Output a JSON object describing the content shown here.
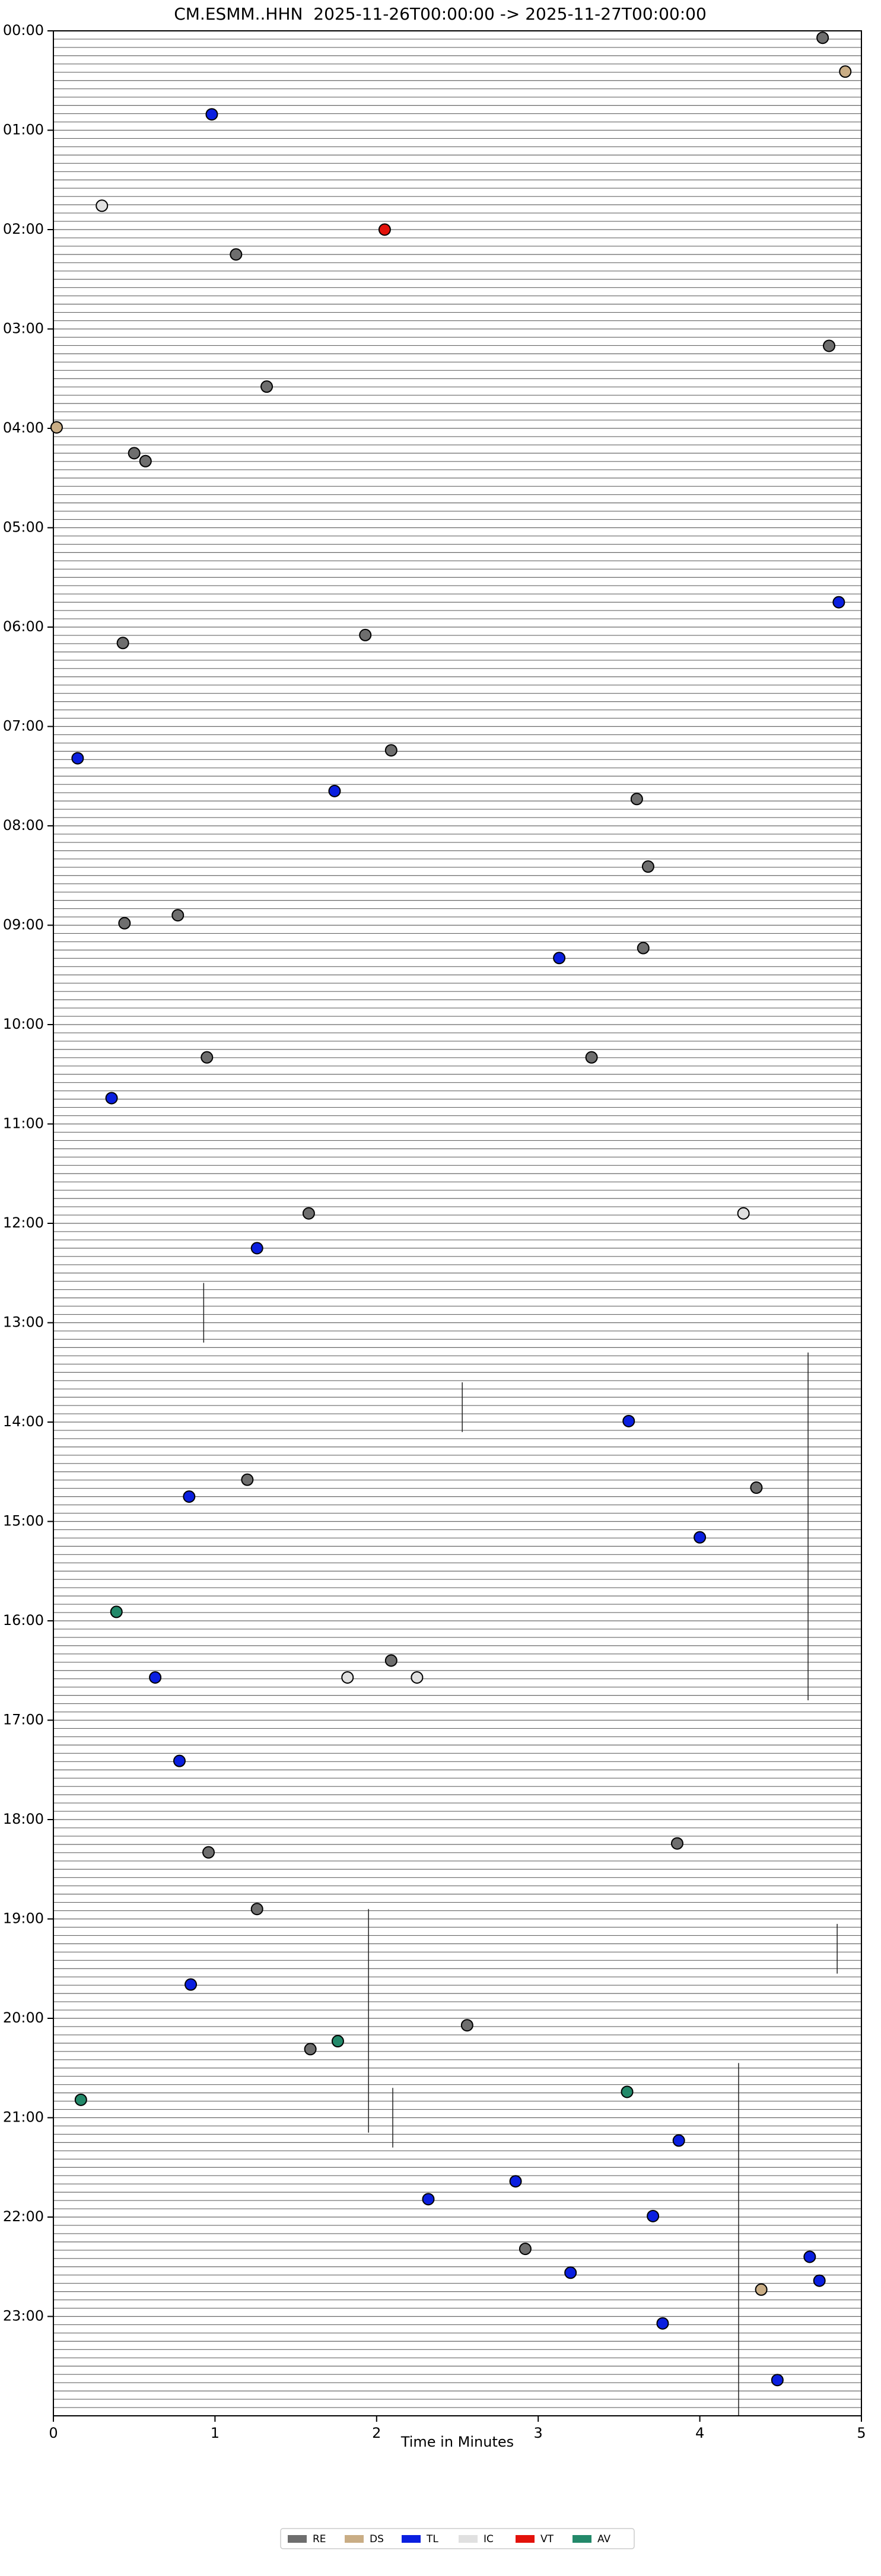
{
  "chart_data": {
    "type": "scatter",
    "title": "CM.ESMM..HHN  2025-11-26T00:00:00 -> 2025-11-27T00:00:00",
    "x_label": "Time in Minutes",
    "xlim": [
      0,
      5
    ],
    "xticks": [
      0,
      1,
      2,
      3,
      4,
      5
    ],
    "ylim": [
      0,
      24
    ],
    "y_inverted": true,
    "yticks": [
      {
        "value": 0,
        "label": "00:00"
      },
      {
        "value": 1,
        "label": "01:00"
      },
      {
        "value": 2,
        "label": "02:00"
      },
      {
        "value": 3,
        "label": "03:00"
      },
      {
        "value": 4,
        "label": "04:00"
      },
      {
        "value": 5,
        "label": "05:00"
      },
      {
        "value": 6,
        "label": "06:00"
      },
      {
        "value": 7,
        "label": "07:00"
      },
      {
        "value": 8,
        "label": "08:00"
      },
      {
        "value": 9,
        "label": "09:00"
      },
      {
        "value": 10,
        "label": "10:00"
      },
      {
        "value": 11,
        "label": "11:00"
      },
      {
        "value": 12,
        "label": "12:00"
      },
      {
        "value": 13,
        "label": "13:00"
      },
      {
        "value": 14,
        "label": "14:00"
      },
      {
        "value": 15,
        "label": "15:00"
      },
      {
        "value": 16,
        "label": "16:00"
      },
      {
        "value": 17,
        "label": "17:00"
      },
      {
        "value": 18,
        "label": "18:00"
      },
      {
        "value": 19,
        "label": "19:00"
      },
      {
        "value": 20,
        "label": "20:00"
      },
      {
        "value": 21,
        "label": "21:00"
      },
      {
        "value": 22,
        "label": "22:00"
      },
      {
        "value": 23,
        "label": "23:00"
      }
    ],
    "legend": "lower center",
    "series": [
      {
        "name": "RE",
        "color": "#6e6e6e",
        "x": [
          4.76,
          1.13,
          4.8,
          1.32,
          0.5,
          0.57,
          1.93,
          0.43,
          2.09,
          3.61,
          3.68,
          0.77,
          0.44,
          3.65,
          0.95,
          3.33,
          1.58,
          1.2,
          4.35,
          2.09,
          0.96,
          3.86,
          1.26,
          2.56,
          1.59,
          2.92
        ],
        "y": [
          0.07,
          2.25,
          3.17,
          3.58,
          4.25,
          4.33,
          6.08,
          6.16,
          7.24,
          7.73,
          8.41,
          8.9,
          8.98,
          9.23,
          10.33,
          10.33,
          11.9,
          14.58,
          14.66,
          16.4,
          18.33,
          18.24,
          18.9,
          20.07,
          20.31,
          22.32
        ]
      },
      {
        "name": "DS",
        "color": "#c9ad85",
        "x": [
          4.9,
          0.02,
          4.38
        ],
        "y": [
          0.41,
          3.99,
          22.73
        ]
      },
      {
        "name": "TL",
        "color": "#0a1fe0",
        "x": [
          0.98,
          4.86,
          0.15,
          1.74,
          3.13,
          0.36,
          1.26,
          3.56,
          0.84,
          4.0,
          0.63,
          0.78,
          0.85,
          3.87,
          2.86,
          2.32,
          3.71,
          4.68,
          3.2,
          4.74,
          3.77,
          4.48
        ],
        "y": [
          0.84,
          5.75,
          7.32,
          7.65,
          9.33,
          10.74,
          12.25,
          13.99,
          14.75,
          15.16,
          16.57,
          17.41,
          19.66,
          21.23,
          21.64,
          21.82,
          21.99,
          22.4,
          22.56,
          22.64,
          23.07,
          23.64
        ]
      },
      {
        "name": "IC",
        "color": "#e0e0e0",
        "x": [
          0.3,
          4.27,
          1.82,
          2.25
        ],
        "y": [
          1.76,
          11.9,
          16.57,
          16.57
        ]
      },
      {
        "name": "VT",
        "color": "#e3120b",
        "x": [
          2.05
        ],
        "y": [
          2.0
        ]
      },
      {
        "name": "AV",
        "color": "#23896a",
        "x": [
          0.39,
          1.76,
          0.17,
          3.55
        ],
        "y": [
          15.91,
          20.23,
          20.82,
          20.74
        ]
      }
    ]
  }
}
